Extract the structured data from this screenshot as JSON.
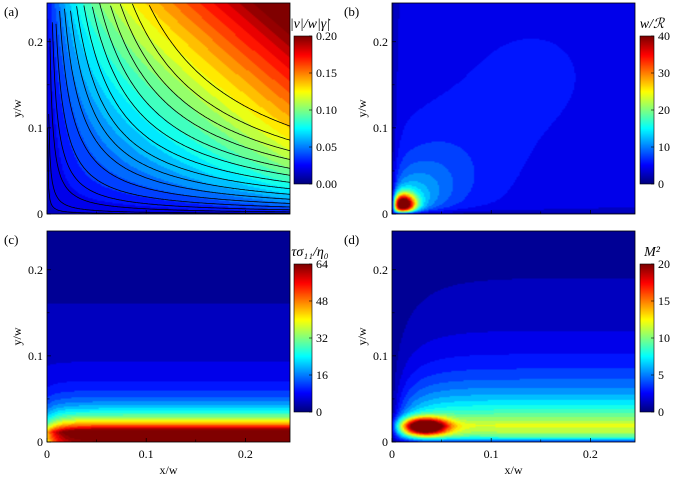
{
  "chart_data": [
    {
      "panel": "(a)",
      "type": "heatmap",
      "xlabel": "",
      "ylabel": "y/w",
      "xlim": [
        0,
        0.245
      ],
      "ylim": [
        0,
        0.245
      ],
      "yticks": [
        "0",
        "0.1",
        "0.2"
      ],
      "xticks": [],
      "colorbar": {
        "title": "|v|/w|γ̇|",
        "ticks": [
          "0.00",
          "0.05",
          "0.10",
          "0.15",
          "0.20"
        ],
        "range": [
          0,
          0.2
        ],
        "colormap": "jet"
      },
      "field": "near-corner low values rising toward (0.245, 0.245); streamlines are hyperbolas x·y = const",
      "streamline_levels": [
        5e-05,
        0.0002,
        0.0006,
        0.0012,
        0.002,
        0.003,
        0.0042,
        0.0056,
        0.0072,
        0.009,
        0.011,
        0.013,
        0.0155,
        0.018,
        0.021,
        0.025
      ]
    },
    {
      "panel": "(b)",
      "type": "heatmap",
      "xlabel": "",
      "ylabel": "y/w",
      "xlim": [
        0,
        0.245
      ],
      "ylim": [
        0,
        0.245
      ],
      "yticks": [
        "0",
        "0.1",
        "0.2"
      ],
      "xticks": [],
      "colorbar": {
        "title": "w/ℛ",
        "ticks": [
          "0",
          "10",
          "20",
          "30",
          "40"
        ],
        "range": [
          0,
          40
        ],
        "colormap": "jet"
      },
      "field": "sharp peak (~40) near (0.01, 0.01), decaying outward along the diagonal"
    },
    {
      "panel": "(c)",
      "type": "heatmap",
      "xlabel": "",
      "ylabel": "y/w",
      "xlim": [
        0,
        0.245
      ],
      "ylim": [
        0,
        0.245
      ],
      "yticks": [
        "0",
        "0.1",
        "0.2"
      ],
      "xticks": [
        "0",
        "0.1",
        "0.2"
      ],
      "colorbar": {
        "title": "τσ11/η0",
        "ticks": [
          "0",
          "16",
          "32",
          "48",
          "64"
        ],
        "range": [
          0,
          64
        ],
        "colormap": "jet"
      },
      "field": "high stress band (~64) along the wall y≈0.02, decaying with y"
    },
    {
      "panel": "(d)",
      "type": "heatmap",
      "xlabel": "x/w",
      "ylabel": "y/w",
      "xlim": [
        0,
        0.245
      ],
      "ylim": [
        0,
        0.245
      ],
      "yticks": [
        "0",
        "0.1",
        "0.2"
      ],
      "xticks": [
        "0",
        "0.1",
        "0.2"
      ],
      "colorbar": {
        "title": "M²",
        "ticks": [
          "0",
          "5",
          "10",
          "15",
          "20"
        ],
        "range": [
          0,
          20
        ],
        "colormap": "jet"
      },
      "field": "peak (~20) near (0.03, 0.018) with band along the wall, decaying with y"
    }
  ],
  "panels": {
    "a": {
      "label": "(a)",
      "cb_title": "|v|/w|γ̇|",
      "cb_ticks": [
        "0.00",
        "0.05",
        "0.10",
        "0.15",
        "0.20"
      ]
    },
    "b": {
      "label": "(b)",
      "cb_title": "w/ℛ",
      "cb_ticks": [
        "0",
        "10",
        "20",
        "30",
        "40"
      ]
    },
    "c": {
      "label": "(c)",
      "cb_title": "τσ₁₁/η₀",
      "cb_ticks": [
        "0",
        "16",
        "32",
        "48",
        "64"
      ]
    },
    "d": {
      "label": "(d)",
      "cb_title": "M²",
      "cb_ticks": [
        "0",
        "5",
        "10",
        "15",
        "20"
      ]
    }
  },
  "axes": {
    "y_label": "y/w",
    "x_label": "x/w",
    "y_ticks": [
      "0",
      "0.1",
      "0.2"
    ],
    "x_ticks": [
      "0",
      "0.1",
      "0.2"
    ]
  }
}
